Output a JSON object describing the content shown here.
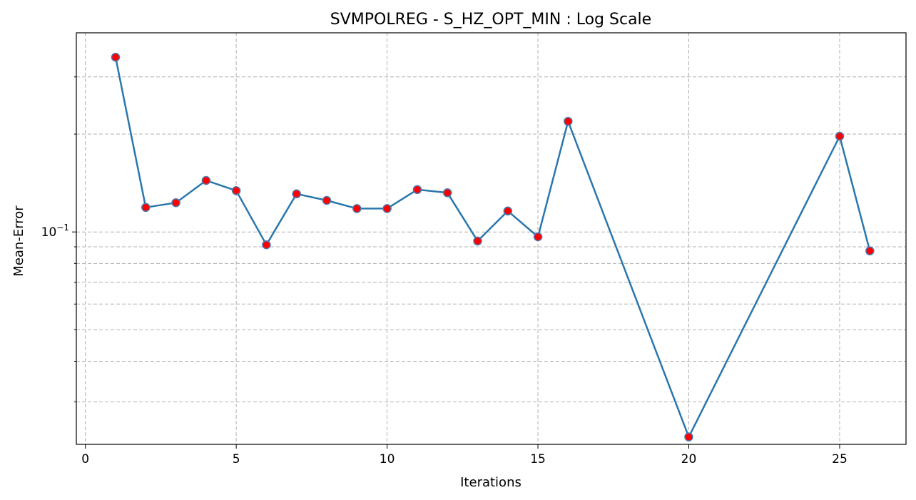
{
  "chart_data": {
    "type": "line",
    "title": "SVMPOLREG - S_HZ_OPT_MIN : Log Scale",
    "xlabel": "Iterations",
    "ylabel": "Mean-Error",
    "yscale": "log",
    "xlim": [
      -0.3,
      27.2
    ],
    "ylim": [
      0.0222,
      0.41
    ],
    "xticks": [
      0,
      5,
      10,
      15,
      20,
      25
    ],
    "yticks_major": [
      0.1
    ],
    "ytick_major_labels": [
      "10−1"
    ],
    "yticks_minor": [
      0.03,
      0.04,
      0.05,
      0.06,
      0.07,
      0.08,
      0.09,
      0.2,
      0.3
    ],
    "grid": true,
    "marker_fill": "#ff0000",
    "line_color": "#2a77ad",
    "x": [
      1,
      2,
      3,
      4,
      5,
      6,
      7,
      8,
      9,
      10,
      11,
      12,
      13,
      14,
      15,
      16,
      20,
      25,
      26
    ],
    "y": [
      0.345,
      0.119,
      0.123,
      0.144,
      0.134,
      0.0913,
      0.131,
      0.125,
      0.118,
      0.118,
      0.135,
      0.132,
      0.0938,
      0.116,
      0.0966,
      0.219,
      0.0234,
      0.197,
      0.0874
    ]
  }
}
